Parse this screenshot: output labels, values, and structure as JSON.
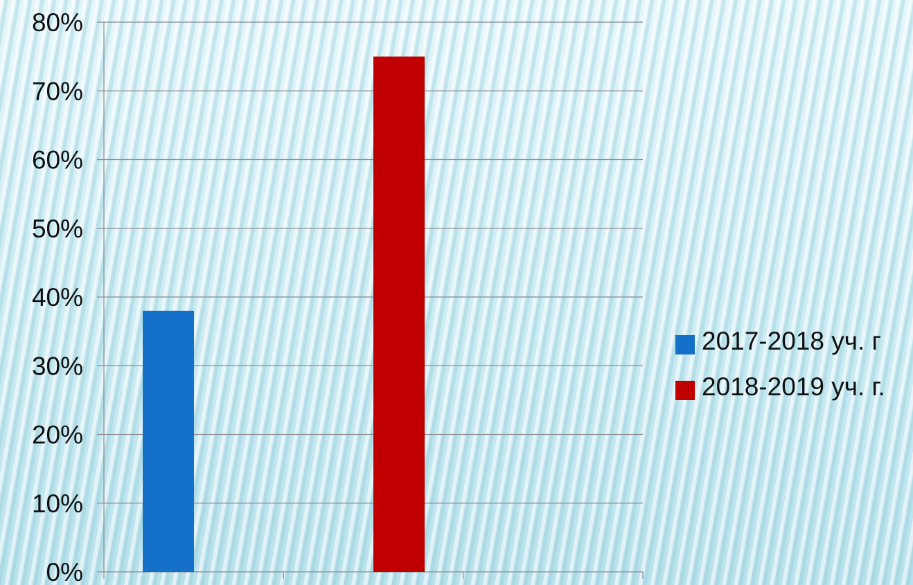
{
  "chart_data": {
    "type": "bar",
    "title": "",
    "xlabel": "",
    "ylabel": "",
    "ylim": [
      0,
      80
    ],
    "y_tick_labels": [
      "0%",
      "10%",
      "20%",
      "30%",
      "40%",
      "50%",
      "60%",
      "70%",
      "80%"
    ],
    "y_ticks": [
      0,
      10,
      20,
      30,
      40,
      50,
      60,
      70,
      80
    ],
    "grid": true,
    "legend_position": "right",
    "categories": [
      "",
      "",
      ""
    ],
    "series": [
      {
        "name": "2017-2018 уч. г",
        "color": "#1470c8",
        "values": [
          38,
          null,
          null
        ]
      },
      {
        "name": "2018-2019 уч. г.",
        "color": "#c00000",
        "values": [
          75,
          null,
          null
        ]
      }
    ]
  }
}
